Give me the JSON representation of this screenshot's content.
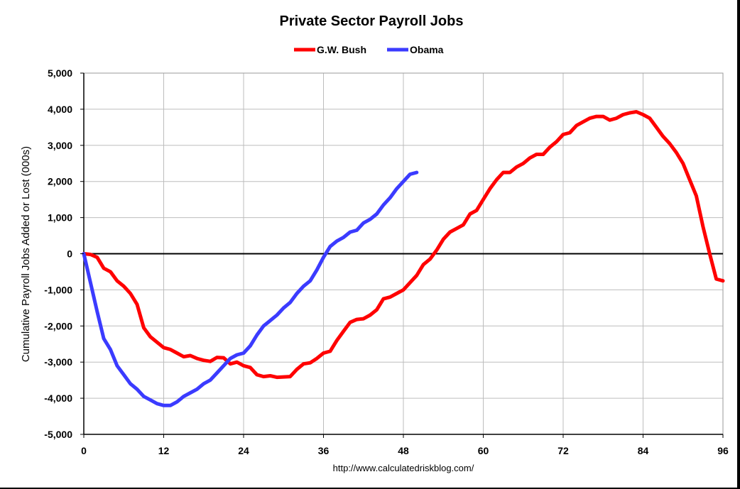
{
  "chart_data": {
    "type": "line",
    "title": "Private Sector Payroll Jobs",
    "ylabel": "Cumulative Payroll Jobs Added or  Lost (000s)",
    "xlabel": "",
    "source": "http://www.calculatedriskblog.com/",
    "xlim": [
      0,
      96
    ],
    "ylim": [
      -5000,
      5000
    ],
    "xticks": [
      0,
      12,
      24,
      36,
      48,
      60,
      72,
      84,
      96
    ],
    "yticks": [
      5000,
      4000,
      3000,
      2000,
      1000,
      0,
      -1000,
      -2000,
      -3000,
      -4000,
      -5000
    ],
    "xtick_labels": [
      "0",
      "12",
      "24",
      "36",
      "48",
      "60",
      "72",
      "84",
      "96"
    ],
    "ytick_labels": [
      "5,000",
      "4,000",
      "3,000",
      "2,000",
      "1,000",
      "0",
      "-1,000",
      "-2,000",
      "-3,000",
      "-4,000",
      "-5,000"
    ],
    "grid": true,
    "legend_position": "top-center",
    "series": [
      {
        "name": "G.W. Bush",
        "color": "#ff0000",
        "x": [
          0,
          1,
          2,
          3,
          4,
          5,
          6,
          7,
          8,
          9,
          10,
          11,
          12,
          13,
          14,
          15,
          16,
          17,
          18,
          19,
          20,
          21,
          22,
          23,
          24,
          25,
          26,
          27,
          28,
          29,
          30,
          31,
          32,
          33,
          34,
          35,
          36,
          37,
          38,
          39,
          40,
          41,
          42,
          43,
          44,
          45,
          46,
          47,
          48,
          49,
          50,
          51,
          52,
          53,
          54,
          55,
          56,
          57,
          58,
          59,
          60,
          61,
          62,
          63,
          64,
          65,
          66,
          67,
          68,
          69,
          70,
          71,
          72,
          73,
          74,
          75,
          76,
          77,
          78,
          79,
          80,
          81,
          82,
          83,
          84,
          85,
          86,
          87,
          88,
          89,
          90,
          91,
          92,
          93,
          94,
          95,
          96
        ],
        "values": [
          0,
          -20,
          -100,
          -400,
          -500,
          -750,
          -900,
          -1100,
          -1400,
          -2050,
          -2300,
          -2450,
          -2600,
          -2650,
          -2750,
          -2850,
          -2820,
          -2900,
          -2950,
          -2980,
          -2870,
          -2880,
          -3050,
          -3000,
          -3100,
          -3150,
          -3350,
          -3400,
          -3380,
          -3420,
          -3410,
          -3400,
          -3200,
          -3050,
          -3020,
          -2900,
          -2750,
          -2700,
          -2400,
          -2150,
          -1900,
          -1820,
          -1800,
          -1700,
          -1550,
          -1250,
          -1200,
          -1100,
          -1000,
          -800,
          -600,
          -300,
          -150,
          100,
          400,
          600,
          700,
          800,
          1100,
          1200,
          1500,
          1800,
          2050,
          2250,
          2250,
          2400,
          2500,
          2650,
          2750,
          2750,
          2950,
          3100,
          3300,
          3350,
          3550,
          3650,
          3750,
          3800,
          3800,
          3700,
          3750,
          3850,
          3900,
          3930,
          3850,
          3750,
          3500,
          3250,
          3050,
          2800,
          2500,
          2050,
          1600,
          750,
          0,
          -700,
          -750
        ]
      },
      {
        "name": "Obama",
        "color": "#3b3bff",
        "x": [
          0,
          1,
          2,
          3,
          4,
          5,
          6,
          7,
          8,
          9,
          10,
          11,
          12,
          13,
          14,
          15,
          16,
          17,
          18,
          19,
          20,
          21,
          22,
          23,
          24,
          25,
          26,
          27,
          28,
          29,
          30,
          31,
          32,
          33,
          34,
          35,
          36,
          37,
          38,
          39,
          40,
          41,
          42,
          43,
          44,
          45,
          46,
          47,
          48,
          49,
          50
        ],
        "values": [
          0,
          -800,
          -1600,
          -2350,
          -2650,
          -3100,
          -3350,
          -3600,
          -3750,
          -3950,
          -4050,
          -4150,
          -4200,
          -4200,
          -4100,
          -3950,
          -3850,
          -3750,
          -3600,
          -3500,
          -3300,
          -3100,
          -2900,
          -2800,
          -2750,
          -2550,
          -2250,
          -2000,
          -1850,
          -1700,
          -1500,
          -1350,
          -1100,
          -900,
          -750,
          -450,
          -100,
          200,
          350,
          450,
          600,
          650,
          850,
          950,
          1100,
          1350,
          1550,
          1800,
          2000,
          2200,
          2250
        ]
      }
    ]
  }
}
